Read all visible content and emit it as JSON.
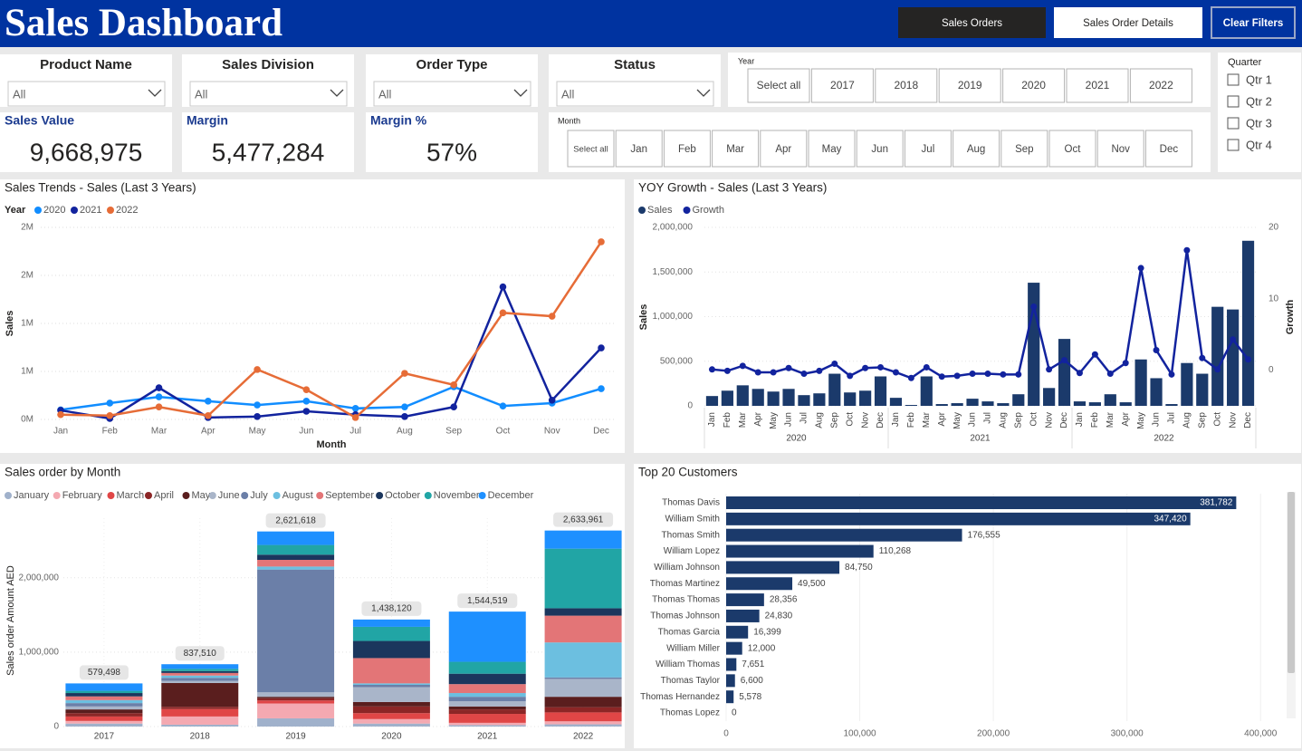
{
  "header": {
    "title": "Sales Dashboard",
    "buttons": [
      "Sales Orders",
      "Sales Order Details",
      "Clear Filters"
    ]
  },
  "filters": [
    {
      "label": "Product Name",
      "value": "All"
    },
    {
      "label": "Sales Division",
      "value": "All"
    },
    {
      "label": "Order Type",
      "value": "All"
    },
    {
      "label": "Status",
      "value": "All"
    }
  ],
  "year_slicer": {
    "title": "Year",
    "options": [
      "Select all",
      "2017",
      "2018",
      "2019",
      "2020",
      "2021",
      "2022"
    ]
  },
  "month_slicer": {
    "title": "Month",
    "options": [
      "Select all",
      "Jan",
      "Feb",
      "Mar",
      "Apr",
      "May",
      "Jun",
      "Jul",
      "Aug",
      "Sep",
      "Oct",
      "Nov",
      "Dec"
    ]
  },
  "quarter_slicer": {
    "title": "Quarter",
    "options": [
      "Qtr 1",
      "Qtr 2",
      "Qtr 3",
      "Qtr 4"
    ]
  },
  "kpis": [
    {
      "label": "Sales Value",
      "value": "9,668,975"
    },
    {
      "label": "Margin",
      "value": "5,477,284"
    },
    {
      "label": "Margin %",
      "value": "57%"
    }
  ],
  "chart_data": [
    {
      "type": "line",
      "title": "Sales Trends - Sales (Last 3 Years)",
      "legend_title": "Year",
      "x_label": "Month",
      "y_label": "Sales",
      "categories": [
        "Jan",
        "Feb",
        "Mar",
        "Apr",
        "May",
        "Jun",
        "Jul",
        "Aug",
        "Sep",
        "Oct",
        "Nov",
        "Dec"
      ],
      "series": [
        {
          "name": "2020",
          "color": "#118DFF",
          "values": [
            100000,
            170000,
            235000,
            190000,
            150000,
            190000,
            115000,
            130000,
            340000,
            140000,
            170000,
            320000
          ]
        },
        {
          "name": "2021",
          "color": "#12239E",
          "values": [
            95000,
            10000,
            330000,
            20000,
            30000,
            85000,
            50000,
            30000,
            130000,
            1380000,
            200000,
            745000
          ]
        },
        {
          "name": "2022",
          "color": "#E66C37",
          "values": [
            50000,
            40000,
            130000,
            40000,
            520000,
            310000,
            20000,
            480000,
            360000,
            1110000,
            1075000,
            1850000
          ]
        }
      ],
      "ylim": [
        0,
        2000000
      ],
      "yticks": [
        {
          "value": 0,
          "label": "0M"
        },
        {
          "value": 500000,
          "label": "1M"
        },
        {
          "value": 1000000,
          "label": "1M"
        },
        {
          "value": 1500000,
          "label": "2M"
        },
        {
          "value": 2000000,
          "label": "2M"
        }
      ],
      "grid": true
    },
    {
      "type": "combo",
      "title": "YOY Growth - Sales (Last 3 Years)",
      "y_label": "Sales",
      "y2_label": "Growth",
      "categories": [
        "Jan",
        "Feb",
        "Mar",
        "Apr",
        "May",
        "Jun",
        "Jul",
        "Aug",
        "Sep",
        "Oct",
        "Nov",
        "Dec",
        "Jan",
        "Feb",
        "Mar",
        "Apr",
        "May",
        "Jun",
        "Jul",
        "Aug",
        "Sep",
        "Oct",
        "Nov",
        "Dec",
        "Jan",
        "Feb",
        "Mar",
        "Apr",
        "May",
        "Jun",
        "Jul",
        "Aug",
        "Sep",
        "Oct",
        "Nov",
        "Dec"
      ],
      "groups": [
        "2020",
        "2021",
        "2022"
      ],
      "series": [
        {
          "name": "Sales",
          "type": "bar",
          "color": "#1B3A6B",
          "values": [
            110000,
            170000,
            230000,
            190000,
            160000,
            190000,
            120000,
            140000,
            360000,
            150000,
            170000,
            330000,
            90000,
            10000,
            330000,
            20000,
            30000,
            80000,
            50000,
            30000,
            130000,
            1380000,
            200000,
            750000,
            50000,
            40000,
            130000,
            40000,
            520000,
            310000,
            20000,
            480000,
            360000,
            1110000,
            1080000,
            1850000
          ]
        },
        {
          "name": "Growth",
          "type": "line",
          "axis": "y2",
          "color": "#12239E",
          "values": [
            0.1,
            -0.1,
            0.6,
            -0.3,
            -0.3,
            0.3,
            -0.5,
            -0.1,
            0.9,
            -0.8,
            0.3,
            0.4,
            -0.3,
            -1.1,
            0.4,
            -0.9,
            -0.8,
            -0.5,
            -0.5,
            -0.6,
            -0.6,
            8.9,
            0.1,
            1.4,
            -0.4,
            2.2,
            -0.5,
            1.0,
            14.3,
            2.8,
            -0.6,
            16.8,
            1.7,
            0.1,
            4.3,
            1.5
          ]
        }
      ],
      "ylim": [
        0,
        2000000
      ],
      "yticks": [
        0,
        {
          "value": 500000,
          "label": "500,000"
        },
        {
          "value": 1000000,
          "label": "1,000,000"
        },
        {
          "value": 1500000,
          "label": "1,500,000"
        },
        {
          "value": 2000000,
          "label": "2,000,000"
        }
      ],
      "y2lim": [
        -5,
        20
      ],
      "y2ticks": [
        0,
        10,
        20
      ]
    },
    {
      "type": "stacked_bar",
      "title": "Sales order by Month",
      "y_label": "Sales order Amount AED",
      "categories": [
        "2017",
        "2018",
        "2019",
        "2020",
        "2021",
        "2022"
      ],
      "series": [
        {
          "name": "January",
          "color": "#A0B1CB",
          "values": [
            40000,
            25000,
            110000,
            40000,
            20000,
            30000
          ]
        },
        {
          "name": "February",
          "color": "#F4A9B1",
          "values": [
            35000,
            110000,
            200000,
            60000,
            30000,
            40000
          ]
        },
        {
          "name": "March",
          "color": "#E04646",
          "values": [
            60000,
            100000,
            40000,
            80000,
            120000,
            120000
          ]
        },
        {
          "name": "April",
          "color": "#8C2626",
          "values": [
            45000,
            30000,
            30000,
            90000,
            60000,
            70000
          ]
        },
        {
          "name": "May",
          "color": "#5A1E1E",
          "values": [
            50000,
            320000,
            20000,
            60000,
            40000,
            140000
          ]
        },
        {
          "name": "June",
          "color": "#A9B5C9",
          "values": [
            40000,
            30000,
            60000,
            200000,
            70000,
            240000
          ]
        },
        {
          "name": "July",
          "color": "#6B7FA8",
          "values": [
            45000,
            40000,
            1650000,
            30000,
            60000,
            20000
          ]
        },
        {
          "name": "August",
          "color": "#6CBFE0",
          "values": [
            40000,
            30000,
            40000,
            20000,
            50000,
            470000
          ]
        },
        {
          "name": "September",
          "color": "#E37577",
          "values": [
            50000,
            35000,
            90000,
            340000,
            120000,
            360000
          ]
        },
        {
          "name": "October",
          "color": "#1B365D",
          "values": [
            45000,
            25000,
            70000,
            230000,
            140000,
            100000
          ]
        },
        {
          "name": "November",
          "color": "#21A5A5",
          "values": [
            30000,
            30000,
            130000,
            190000,
            160000,
            800000
          ]
        },
        {
          "name": "December",
          "color": "#1E90FF",
          "values": [
            99498,
            62510,
            181618,
            98120,
            674519,
            243961
          ]
        }
      ],
      "totals": {
        "values": [
          579498,
          837510,
          2621618,
          1438120,
          1544519,
          2633961
        ],
        "value_labels": [
          "579,498",
          "837,510",
          "2,621,618",
          "1,438,120",
          "1,544,519",
          "2,633,961"
        ]
      },
      "ylim": [
        0,
        2800000
      ],
      "yticks": [
        0,
        {
          "value": 1000000,
          "label": "1,000,000"
        },
        {
          "value": 2000000,
          "label": "2,000,000"
        }
      ],
      "grid": true
    },
    {
      "type": "hbar",
      "title": "Top 20 Customers",
      "categories": [
        "Thomas Davis",
        "William Smith",
        "Thomas Smith",
        "William Lopez",
        "William Johnson",
        "Thomas Martinez",
        "Thomas Thomas",
        "Thomas Johnson",
        "Thomas Garcia",
        "William Miller",
        "William Thomas",
        "Thomas Taylor",
        "Thomas Hernandez",
        "Thomas Lopez"
      ],
      "values": [
        381782,
        347420,
        176555,
        110268,
        84750,
        49500,
        28356,
        24830,
        16399,
        12000,
        7651,
        6600,
        5578,
        0
      ],
      "value_labels": [
        "381,782",
        "347,420",
        "176,555",
        "110,268",
        "84,750",
        "49,500",
        "28,356",
        "24,830",
        "16,399",
        "12,000",
        "7,651",
        "6,600",
        "5,578",
        "0"
      ],
      "color": "#1B3A6B",
      "xlim": [
        0,
        410000
      ],
      "xticks": [
        0,
        {
          "value": 100000,
          "label": "100,000"
        },
        {
          "value": 200000,
          "label": "200,000"
        },
        {
          "value": 300000,
          "label": "300,000"
        },
        {
          "value": 400000,
          "label": "400,000"
        }
      ]
    }
  ]
}
